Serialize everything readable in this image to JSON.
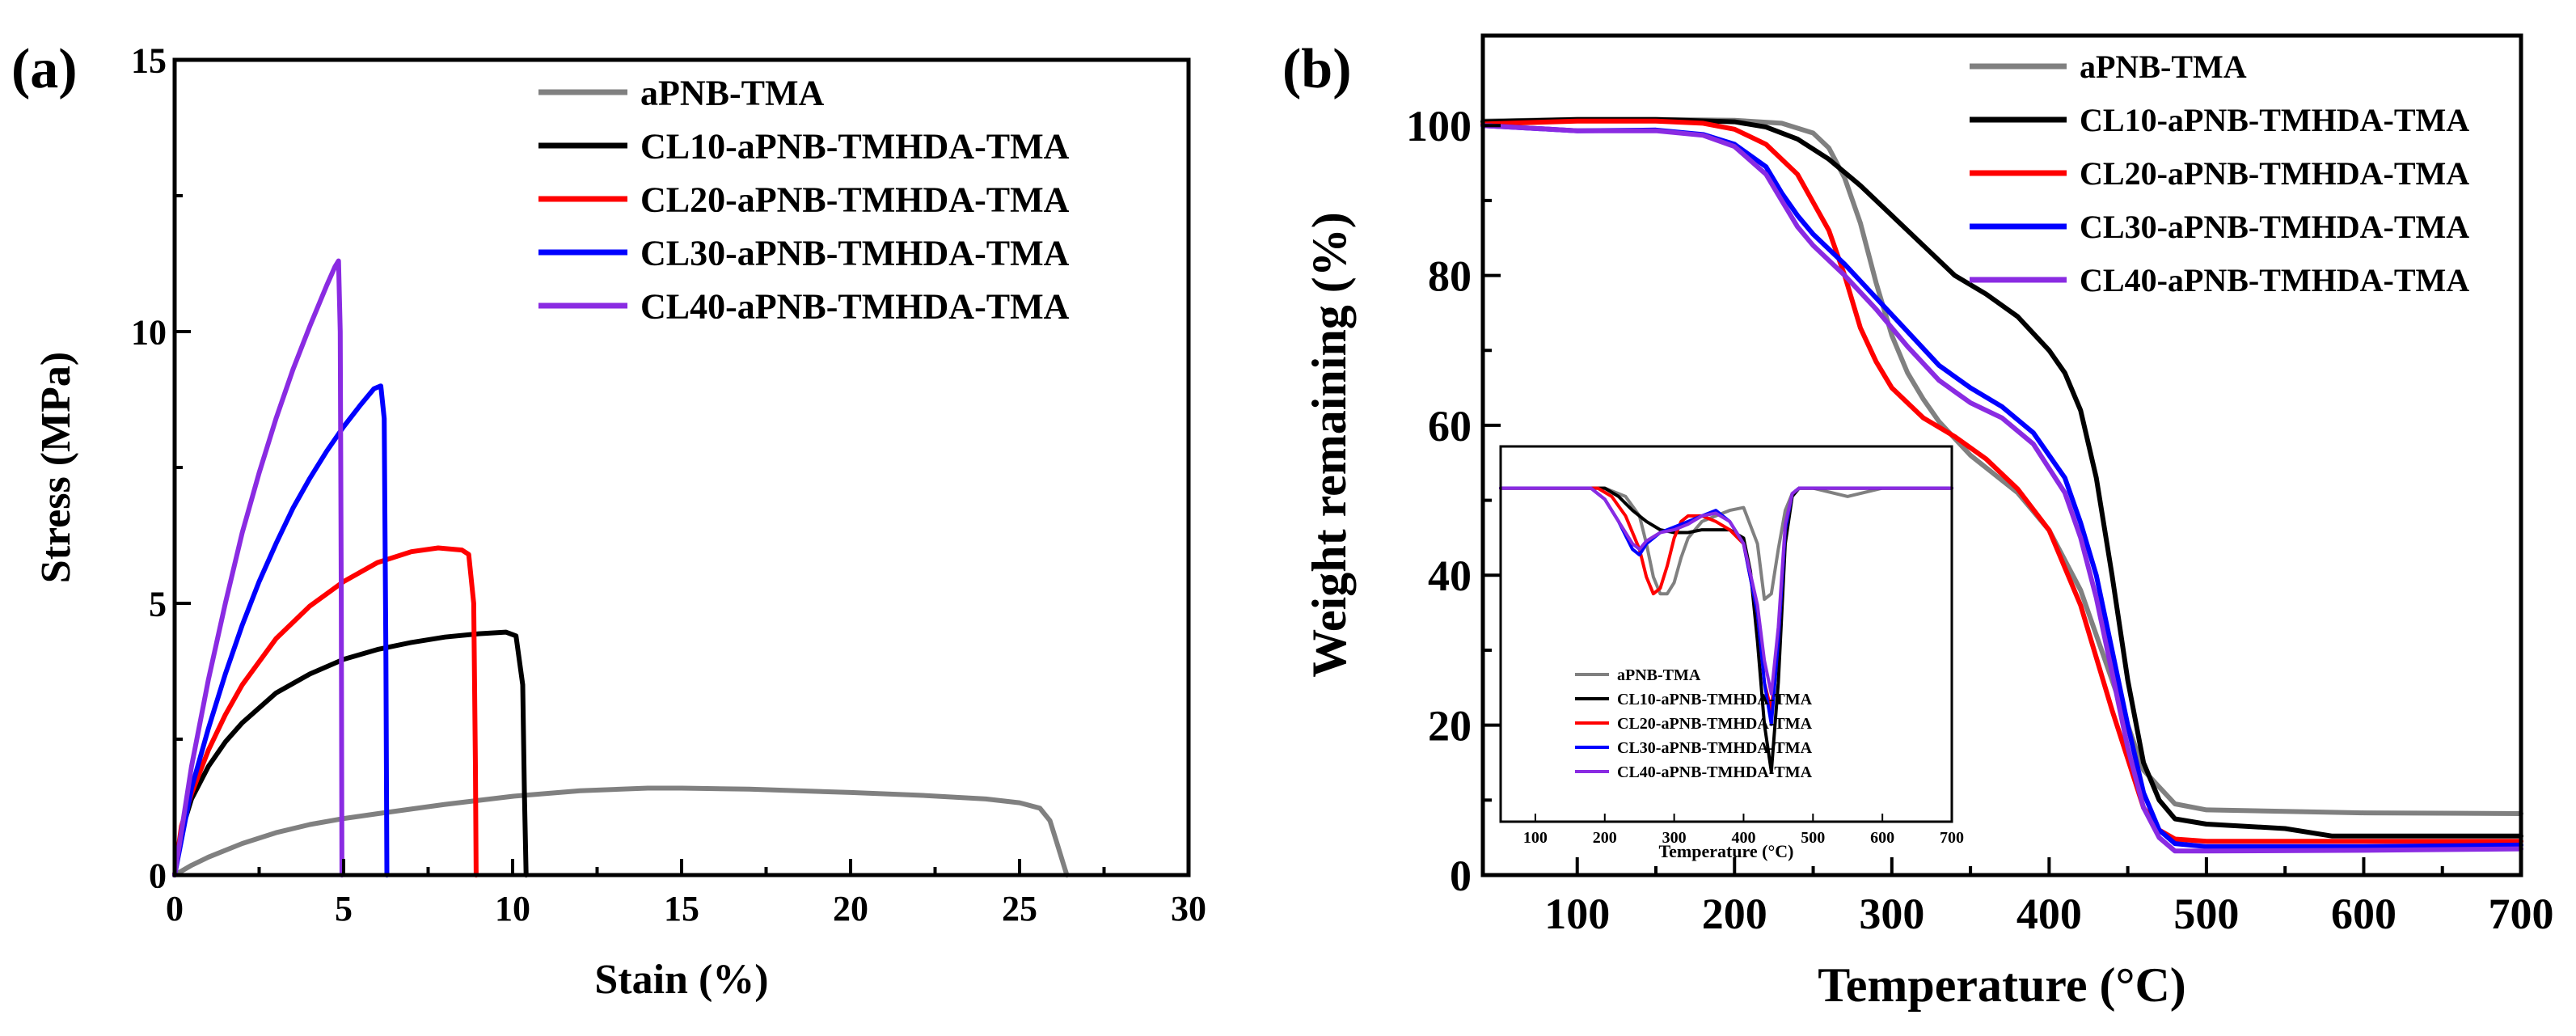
{
  "colors": {
    "aPNB-TMA": "#808080",
    "CL10-aPNB-TMHDA-TMA": "#000000",
    "CL20-aPNB-TMHDA-TMA": "#ff0000",
    "CL30-aPNB-TMHDA-TMA": "#0000ff",
    "CL40-aPNB-TMHDA-TMA": "#8a2be2"
  },
  "chart_data": [
    {
      "panel_label": "(a)",
      "type": "line",
      "title": "",
      "xlabel": "Stain (%)",
      "ylabel": "Stress (MPa)",
      "xlim": [
        0,
        30
      ],
      "ylim": [
        0,
        15
      ],
      "xticks": [
        0,
        5,
        10,
        15,
        20,
        25,
        30
      ],
      "yticks": [
        0,
        5,
        10,
        15
      ],
      "legend_position": "top-right",
      "series": [
        {
          "name": "aPNB-TMA",
          "x": [
            0,
            0.5,
            1,
            2,
            3,
            4,
            5,
            6,
            8,
            10,
            12,
            14,
            15,
            17,
            20,
            22,
            24,
            25,
            25.6,
            25.9,
            26.1,
            26.3,
            26.4
          ],
          "y": [
            0,
            0.18,
            0.33,
            0.58,
            0.78,
            0.93,
            1.04,
            1.13,
            1.3,
            1.45,
            1.55,
            1.6,
            1.6,
            1.58,
            1.52,
            1.47,
            1.4,
            1.33,
            1.23,
            1.0,
            0.6,
            0.2,
            0
          ]
        },
        {
          "name": "CL10-aPNB-TMHDA-TMA",
          "x": [
            0,
            0.2,
            0.5,
            1,
            1.5,
            2,
            3,
            4,
            5,
            6,
            7,
            8,
            9,
            9.8,
            10.1,
            10.3,
            10.35,
            10.4
          ],
          "y": [
            0,
            0.8,
            1.4,
            2.0,
            2.45,
            2.8,
            3.35,
            3.7,
            3.97,
            4.15,
            4.28,
            4.38,
            4.44,
            4.47,
            4.4,
            3.5,
            1.5,
            0
          ]
        },
        {
          "name": "CL20-aPNB-TMHDA-TMA",
          "x": [
            0,
            0.2,
            0.5,
            1,
            1.5,
            2,
            3,
            4,
            5,
            6,
            7,
            7.8,
            8.5,
            8.7,
            8.85,
            8.9,
            8.92
          ],
          "y": [
            0,
            0.9,
            1.5,
            2.3,
            2.95,
            3.5,
            4.35,
            4.95,
            5.4,
            5.75,
            5.95,
            6.02,
            5.98,
            5.9,
            5.0,
            2.0,
            0
          ]
        },
        {
          "name": "CL30-aPNB-TMHDA-TMA",
          "x": [
            0,
            0.5,
            1,
            1.5,
            2,
            2.5,
            3,
            3.5,
            4,
            4.5,
            5,
            5.5,
            5.9,
            6.1,
            6.2,
            6.25,
            6.28
          ],
          "y": [
            0,
            1.6,
            2.7,
            3.7,
            4.6,
            5.4,
            6.1,
            6.75,
            7.3,
            7.8,
            8.25,
            8.65,
            8.95,
            9.0,
            8.4,
            4.0,
            0
          ]
        },
        {
          "name": "CL40-aPNB-TMHDA-TMA",
          "x": [
            0,
            0.5,
            1,
            1.5,
            2,
            2.5,
            3,
            3.5,
            4,
            4.5,
            4.75,
            4.85,
            4.9,
            4.93,
            4.95
          ],
          "y": [
            0,
            2.0,
            3.6,
            5.0,
            6.3,
            7.4,
            8.4,
            9.3,
            10.1,
            10.85,
            11.2,
            11.3,
            10.0,
            5.0,
            0
          ]
        }
      ]
    },
    {
      "panel_label": "(b)",
      "type": "line",
      "title": "",
      "xlabel": "Temperature (°C)",
      "ylabel": "Weight remaining (%)",
      "xlim": [
        40,
        700
      ],
      "ylim": [
        0,
        112
      ],
      "xticks": [
        100,
        200,
        300,
        400,
        500,
        600,
        700
      ],
      "yticks": [
        0,
        20,
        40,
        60,
        80,
        100
      ],
      "legend_position": "top-right",
      "series": [
        {
          "name": "aPNB-TMA",
          "x": [
            40,
            100,
            150,
            200,
            230,
            250,
            260,
            270,
            280,
            290,
            300,
            310,
            320,
            330,
            350,
            380,
            400,
            420,
            440,
            460,
            480,
            500,
            600,
            700
          ],
          "y": [
            100.6,
            100.8,
            100.8,
            100.7,
            100.3,
            99,
            97,
            93,
            87,
            79,
            72,
            67,
            63.5,
            60.5,
            56,
            51,
            46,
            38,
            26,
            14,
            9.5,
            8.7,
            8.3,
            8.2
          ]
        },
        {
          "name": "CL10-aPNB-TMHDA-TMA",
          "x": [
            40,
            100,
            150,
            200,
            220,
            240,
            260,
            280,
            300,
            320,
            340,
            360,
            380,
            400,
            410,
            420,
            430,
            440,
            450,
            460,
            470,
            480,
            500,
            550,
            580,
            600,
            700
          ],
          "y": [
            100.5,
            100.8,
            100.8,
            100.5,
            99.8,
            98.2,
            95.5,
            92,
            88,
            84,
            80,
            77.5,
            74.5,
            70,
            67,
            62,
            53,
            40,
            26,
            15,
            10,
            7.5,
            6.8,
            6.2,
            5.2,
            5.2,
            5.2
          ]
        },
        {
          "name": "CL20-aPNB-TMHDA-TMA",
          "x": [
            40,
            100,
            150,
            180,
            200,
            220,
            240,
            260,
            270,
            280,
            290,
            300,
            320,
            340,
            360,
            380,
            400,
            420,
            440,
            460,
            470,
            480,
            500,
            600,
            700
          ],
          "y": [
            100.2,
            100.6,
            100.6,
            100.3,
            99.5,
            97.5,
            93.5,
            86,
            80,
            73,
            68.5,
            65,
            61,
            58.5,
            55.5,
            51.5,
            46,
            36,
            22,
            9,
            6,
            4.8,
            4.5,
            4.5,
            4.5
          ]
        },
        {
          "name": "CL30-aPNB-TMHDA-TMA",
          "x": [
            40,
            100,
            150,
            180,
            200,
            220,
            230,
            240,
            250,
            270,
            290,
            310,
            330,
            350,
            370,
            390,
            410,
            420,
            430,
            440,
            450,
            460,
            470,
            480,
            500,
            600,
            700
          ],
          "y": [
            100,
            99.3,
            99.4,
            98.8,
            97.5,
            94.5,
            91,
            88,
            85.5,
            81.5,
            77,
            72.5,
            68,
            65,
            62.5,
            59,
            53,
            47,
            40,
            30,
            20,
            11,
            6,
            4.2,
            3.8,
            3.8,
            4
          ]
        },
        {
          "name": "CL40-aPNB-TMHDA-TMA",
          "x": [
            40,
            100,
            150,
            180,
            200,
            220,
            230,
            240,
            250,
            270,
            290,
            310,
            330,
            350,
            370,
            390,
            410,
            420,
            430,
            440,
            450,
            460,
            470,
            480,
            500,
            600,
            700
          ],
          "y": [
            100,
            99.3,
            99.3,
            98.7,
            97.2,
            93.5,
            90,
            86.5,
            84,
            80,
            75.5,
            70.5,
            66,
            63,
            61,
            57.5,
            51,
            45,
            37,
            27,
            17,
            9,
            5,
            3.2,
            3.2,
            3.3,
            3.5
          ]
        }
      ],
      "inset": {
        "type": "line",
        "xlabel": "Temperature (°C)",
        "ylabel": "",
        "xlim": [
          50,
          700
        ],
        "ylim": [
          -1.2,
          0.15
        ],
        "xticks": [
          100,
          200,
          300,
          400,
          500,
          600,
          700
        ],
        "legend_position": "bottom-left",
        "series": [
          {
            "name": "aPNB-TMA",
            "x": [
              50,
              200,
              230,
              250,
              260,
              270,
              280,
              290,
              300,
              310,
              320,
              340,
              360,
              380,
              400,
              420,
              430,
              440,
              450,
              460,
              470,
              480,
              500,
              550,
              600,
              700
            ],
            "y": [
              0,
              0,
              -0.03,
              -0.1,
              -0.2,
              -0.32,
              -0.38,
              -0.38,
              -0.34,
              -0.25,
              -0.18,
              -0.12,
              -0.1,
              -0.08,
              -0.07,
              -0.2,
              -0.4,
              -0.38,
              -0.22,
              -0.08,
              -0.02,
              0,
              0,
              -0.03,
              0,
              0
            ]
          },
          {
            "name": "CL10-aPNB-TMHDA-TMA",
            "x": [
              50,
              200,
              220,
              240,
              260,
              280,
              300,
              320,
              340,
              360,
              380,
              400,
              410,
              420,
              430,
              440,
              450,
              460,
              470,
              480,
              500,
              600,
              700
            ],
            "y": [
              0,
              0,
              -0.03,
              -0.08,
              -0.12,
              -0.15,
              -0.16,
              -0.16,
              -0.15,
              -0.15,
              -0.15,
              -0.18,
              -0.3,
              -0.55,
              -0.85,
              -1.02,
              -0.7,
              -0.2,
              -0.03,
              0,
              0,
              0,
              0
            ]
          },
          {
            "name": "CL20-aPNB-TMHDA-TMA",
            "x": [
              50,
              190,
              210,
              230,
              250,
              260,
              270,
              280,
              290,
              300,
              310,
              320,
              340,
              360,
              380,
              400,
              420,
              430,
              440,
              450,
              460,
              470,
              480,
              500,
              600,
              700
            ],
            "y": [
              0,
              0,
              -0.03,
              -0.1,
              -0.22,
              -0.32,
              -0.38,
              -0.36,
              -0.28,
              -0.18,
              -0.12,
              -0.1,
              -0.1,
              -0.12,
              -0.15,
              -0.2,
              -0.45,
              -0.7,
              -0.8,
              -0.55,
              -0.15,
              -0.02,
              0,
              0,
              0,
              0
            ]
          },
          {
            "name": "CL30-aPNB-TMHDA-TMA",
            "x": [
              50,
              180,
              200,
              220,
              240,
              250,
              260,
              280,
              300,
              320,
              340,
              360,
              380,
              400,
              420,
              430,
              440,
              450,
              460,
              470,
              480,
              500,
              600,
              700
            ],
            "y": [
              0,
              0,
              -0.04,
              -0.12,
              -0.22,
              -0.24,
              -0.2,
              -0.16,
              -0.14,
              -0.12,
              -0.1,
              -0.08,
              -0.12,
              -0.2,
              -0.45,
              -0.7,
              -0.85,
              -0.55,
              -0.15,
              -0.02,
              0,
              0,
              0,
              0
            ]
          },
          {
            "name": "CL40-aPNB-TMHDA-TMA",
            "x": [
              50,
              180,
              200,
              220,
              240,
              250,
              260,
              280,
              300,
              320,
              340,
              360,
              380,
              400,
              420,
              430,
              440,
              450,
              460,
              470,
              480,
              500,
              600,
              700
            ],
            "y": [
              0,
              0,
              -0.04,
              -0.12,
              -0.2,
              -0.22,
              -0.19,
              -0.16,
              -0.15,
              -0.13,
              -0.1,
              -0.09,
              -0.12,
              -0.2,
              -0.42,
              -0.62,
              -0.74,
              -0.5,
              -0.13,
              -0.02,
              0,
              0,
              0,
              0
            ]
          }
        ]
      }
    }
  ]
}
